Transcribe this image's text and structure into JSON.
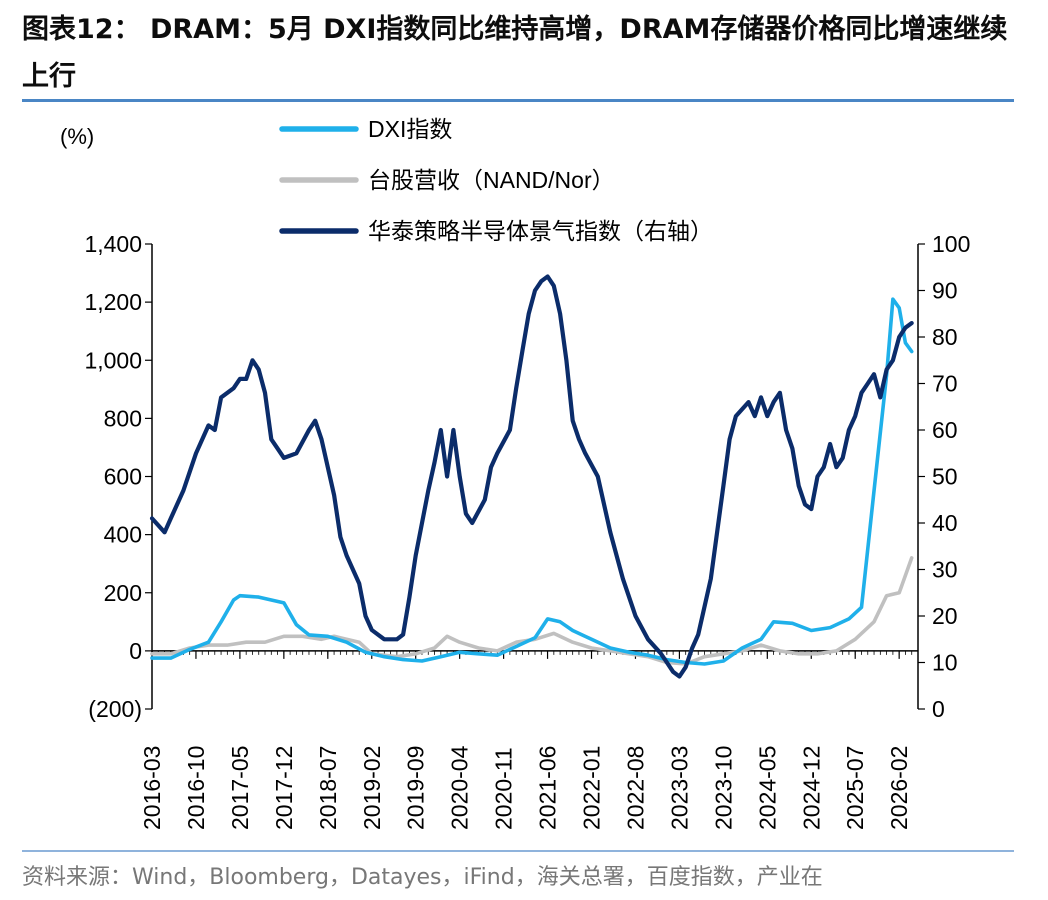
{
  "title": "图表12： DRAM：5月 DXI指数同比维持高增，DRAM存储器价格同比增速继续上行",
  "source": "资料来源：Wind，Bloomberg，Datayes，iFind，海关总署，百度指数，产业在",
  "chart_data": {
    "type": "line",
    "left_unit": "(%)",
    "y_left": {
      "lim": [
        -200,
        1400
      ],
      "ticks": [
        -200,
        0,
        200,
        400,
        600,
        800,
        1000,
        1200,
        1400
      ],
      "tick_labels": [
        "(200)",
        "0",
        "200",
        "400",
        "600",
        "800",
        "1,000",
        "1,200",
        "1,400"
      ]
    },
    "y_right": {
      "lim": [
        0,
        100
      ],
      "ticks": [
        0,
        10,
        20,
        30,
        40,
        50,
        60,
        70,
        80,
        90,
        100
      ],
      "tick_labels": [
        "0",
        "10",
        "20",
        "30",
        "40",
        "50",
        "60",
        "70",
        "80",
        "90",
        "100"
      ]
    },
    "x_range": [
      "2016-03",
      "2026-05"
    ],
    "x_ticks": [
      "2016-03",
      "2016-10",
      "2017-05",
      "2017-12",
      "2018-07",
      "2019-02",
      "2019-09",
      "2020-04",
      "2020-11",
      "2021-06",
      "2022-01",
      "2022-08",
      "2023-03",
      "2023-10",
      "2024-05",
      "2024-12",
      "2025-07",
      "2026-02"
    ],
    "legend_position": "top",
    "series": [
      {
        "name": "DXI指数",
        "axis": "left",
        "color": "#1fb0ea",
        "points": [
          [
            "2016-03",
            -25
          ],
          [
            "2016-06",
            -25
          ],
          [
            "2016-09",
            5
          ],
          [
            "2016-12",
            30
          ],
          [
            "2017-02",
            100
          ],
          [
            "2017-04",
            175
          ],
          [
            "2017-05",
            190
          ],
          [
            "2017-08",
            185
          ],
          [
            "2017-10",
            175
          ],
          [
            "2017-12",
            165
          ],
          [
            "2018-02",
            90
          ],
          [
            "2018-04",
            55
          ],
          [
            "2018-07",
            50
          ],
          [
            "2018-10",
            30
          ],
          [
            "2019-01",
            -5
          ],
          [
            "2019-04",
            -20
          ],
          [
            "2019-07",
            -30
          ],
          [
            "2019-10",
            -35
          ],
          [
            "2020-01",
            -20
          ],
          [
            "2020-04",
            -5
          ],
          [
            "2020-07",
            -10
          ],
          [
            "2020-10",
            -15
          ],
          [
            "2021-01",
            15
          ],
          [
            "2021-04",
            45
          ],
          [
            "2021-06",
            110
          ],
          [
            "2021-08",
            100
          ],
          [
            "2021-10",
            70
          ],
          [
            "2022-01",
            40
          ],
          [
            "2022-04",
            10
          ],
          [
            "2022-07",
            -5
          ],
          [
            "2022-10",
            -15
          ],
          [
            "2023-01",
            -30
          ],
          [
            "2023-04",
            -40
          ],
          [
            "2023-07",
            -45
          ],
          [
            "2023-10",
            -35
          ],
          [
            "2024-01",
            10
          ],
          [
            "2024-04",
            40
          ],
          [
            "2024-06",
            100
          ],
          [
            "2024-09",
            95
          ],
          [
            "2024-12",
            70
          ],
          [
            "2025-03",
            80
          ],
          [
            "2025-06",
            110
          ],
          [
            "2025-08",
            150
          ],
          [
            "2025-10",
            550
          ],
          [
            "2025-12",
            950
          ],
          [
            "2026-01",
            1210
          ],
          [
            "2026-02",
            1180
          ],
          [
            "2026-03",
            1060
          ],
          [
            "2026-04",
            1030
          ]
        ]
      },
      {
        "name": "台股营收（NAND/Nor）",
        "axis": "left",
        "color": "#c0c0c0",
        "points": [
          [
            "2016-03",
            -10
          ],
          [
            "2016-06",
            -10
          ],
          [
            "2016-09",
            10
          ],
          [
            "2016-12",
            20
          ],
          [
            "2017-03",
            20
          ],
          [
            "2017-06",
            30
          ],
          [
            "2017-09",
            30
          ],
          [
            "2017-12",
            50
          ],
          [
            "2018-03",
            50
          ],
          [
            "2018-06",
            40
          ],
          [
            "2018-08",
            50
          ],
          [
            "2018-12",
            30
          ],
          [
            "2019-02",
            -10
          ],
          [
            "2019-06",
            -20
          ],
          [
            "2019-09",
            -10
          ],
          [
            "2019-12",
            10
          ],
          [
            "2020-02",
            50
          ],
          [
            "2020-04",
            30
          ],
          [
            "2020-07",
            10
          ],
          [
            "2020-10",
            0
          ],
          [
            "2021-01",
            30
          ],
          [
            "2021-04",
            40
          ],
          [
            "2021-07",
            60
          ],
          [
            "2021-10",
            30
          ],
          [
            "2022-01",
            10
          ],
          [
            "2022-04",
            0
          ],
          [
            "2022-07",
            -10
          ],
          [
            "2022-10",
            -20
          ],
          [
            "2023-01",
            -40
          ],
          [
            "2023-04",
            -45
          ],
          [
            "2023-07",
            -20
          ],
          [
            "2023-10",
            -10
          ],
          [
            "2024-01",
            0
          ],
          [
            "2024-04",
            20
          ],
          [
            "2024-07",
            0
          ],
          [
            "2024-10",
            -10
          ],
          [
            "2025-01",
            -10
          ],
          [
            "2025-04",
            0
          ],
          [
            "2025-07",
            40
          ],
          [
            "2025-10",
            100
          ],
          [
            "2025-12",
            190
          ],
          [
            "2026-02",
            200
          ],
          [
            "2026-04",
            320
          ]
        ]
      },
      {
        "name": "华泰策略半导体景气指数（右轴）",
        "axis": "right",
        "color": "#0b2c6a",
        "points": [
          [
            "2016-03",
            41
          ],
          [
            "2016-05",
            38
          ],
          [
            "2016-06",
            41
          ],
          [
            "2016-08",
            47
          ],
          [
            "2016-10",
            55
          ],
          [
            "2016-12",
            61
          ],
          [
            "2017-01",
            60
          ],
          [
            "2017-02",
            67
          ],
          [
            "2017-04",
            69
          ],
          [
            "2017-05",
            71
          ],
          [
            "2017-06",
            71
          ],
          [
            "2017-07",
            75
          ],
          [
            "2017-08",
            73
          ],
          [
            "2017-09",
            68
          ],
          [
            "2017-10",
            58
          ],
          [
            "2017-11",
            56
          ],
          [
            "2017-12",
            54
          ],
          [
            "2018-02",
            55
          ],
          [
            "2018-04",
            60
          ],
          [
            "2018-05",
            62
          ],
          [
            "2018-06",
            58
          ],
          [
            "2018-08",
            46
          ],
          [
            "2018-09",
            37
          ],
          [
            "2018-10",
            33
          ],
          [
            "2018-12",
            27
          ],
          [
            "2019-01",
            20
          ],
          [
            "2019-02",
            17
          ],
          [
            "2019-04",
            15
          ],
          [
            "2019-06",
            15
          ],
          [
            "2019-07",
            16
          ],
          [
            "2019-08",
            24
          ],
          [
            "2019-09",
            33
          ],
          [
            "2019-10",
            40
          ],
          [
            "2019-11",
            47
          ],
          [
            "2019-12",
            53
          ],
          [
            "2020-01",
            60
          ],
          [
            "2020-02",
            50
          ],
          [
            "2020-03",
            60
          ],
          [
            "2020-04",
            50
          ],
          [
            "2020-05",
            42
          ],
          [
            "2020-06",
            40
          ],
          [
            "2020-08",
            45
          ],
          [
            "2020-09",
            52
          ],
          [
            "2020-10",
            55
          ],
          [
            "2020-12",
            60
          ],
          [
            "2021-01",
            69
          ],
          [
            "2021-02",
            77
          ],
          [
            "2021-03",
            85
          ],
          [
            "2021-04",
            90
          ],
          [
            "2021-05",
            92
          ],
          [
            "2021-06",
            93
          ],
          [
            "2021-07",
            91
          ],
          [
            "2021-08",
            85
          ],
          [
            "2021-09",
            75
          ],
          [
            "2021-10",
            62
          ],
          [
            "2021-11",
            58
          ],
          [
            "2021-12",
            55
          ],
          [
            "2022-02",
            50
          ],
          [
            "2022-04",
            38
          ],
          [
            "2022-06",
            28
          ],
          [
            "2022-08",
            20
          ],
          [
            "2022-10",
            15
          ],
          [
            "2022-12",
            12
          ],
          [
            "2023-01",
            10
          ],
          [
            "2023-02",
            8
          ],
          [
            "2023-03",
            7
          ],
          [
            "2023-04",
            9
          ],
          [
            "2023-05",
            13
          ],
          [
            "2023-06",
            16
          ],
          [
            "2023-08",
            28
          ],
          [
            "2023-10",
            48
          ],
          [
            "2023-11",
            58
          ],
          [
            "2023-12",
            63
          ],
          [
            "2024-02",
            66
          ],
          [
            "2024-03",
            63
          ],
          [
            "2024-04",
            67
          ],
          [
            "2024-05",
            63
          ],
          [
            "2024-06",
            66
          ],
          [
            "2024-07",
            68
          ],
          [
            "2024-08",
            60
          ],
          [
            "2024-09",
            56
          ],
          [
            "2024-10",
            48
          ],
          [
            "2024-11",
            44
          ],
          [
            "2024-12",
            43
          ],
          [
            "2025-01",
            50
          ],
          [
            "2025-02",
            52
          ],
          [
            "2025-03",
            57
          ],
          [
            "2025-04",
            52
          ],
          [
            "2025-05",
            54
          ],
          [
            "2025-06",
            60
          ],
          [
            "2025-07",
            63
          ],
          [
            "2025-08",
            68
          ],
          [
            "2025-09",
            70
          ],
          [
            "2025-10",
            72
          ],
          [
            "2025-11",
            67
          ],
          [
            "2025-12",
            73
          ],
          [
            "2026-01",
            75
          ],
          [
            "2026-02",
            80
          ],
          [
            "2026-03",
            82
          ],
          [
            "2026-04",
            83
          ]
        ]
      }
    ]
  }
}
